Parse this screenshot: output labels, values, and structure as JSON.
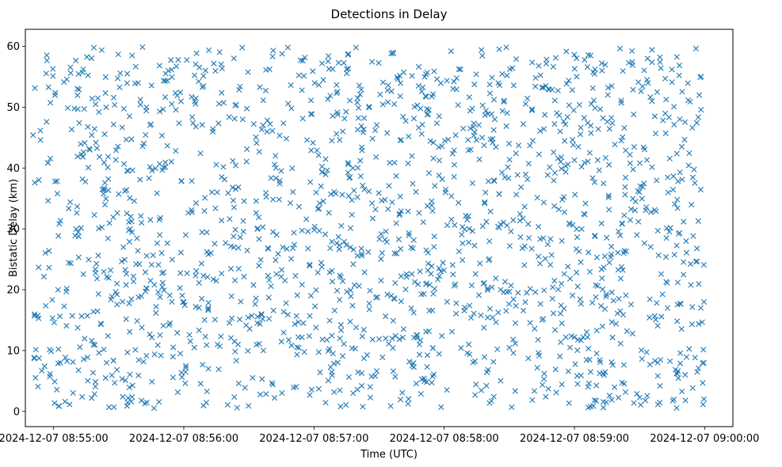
{
  "chart_data": {
    "type": "scatter",
    "title": "Detections in Delay",
    "xlabel": "Time (UTC)",
    "ylabel": "Bistatic Delay (km)",
    "marker": "x",
    "color": "#1f77b4",
    "grid": false,
    "legend": "none",
    "xlim": [
      "2024-12-07 08:54:47",
      "2024-12-07 09:00:13"
    ],
    "ylim": [
      -2.5,
      62.8
    ],
    "xticks": [
      "2024-12-07 08:55:00",
      "2024-12-07 08:56:00",
      "2024-12-07 08:57:00",
      "2024-12-07 08:58:00",
      "2024-12-07 08:59:00",
      "2024-12-07 09:00:00"
    ],
    "yticks": [
      0,
      10,
      20,
      30,
      40,
      50,
      60
    ],
    "x_range": [
      "2024-12-07 08:54:50",
      "2024-12-07 09:00:00"
    ],
    "y_range": [
      0.5,
      59.9
    ],
    "point_count": 1750,
    "tracks": [
      {
        "x": [
          "2024-12-07 08:58:18",
          "2024-12-07 08:58:22",
          "2024-12-07 08:58:26",
          "2024-12-07 08:58:30",
          "2024-12-07 08:58:34",
          "2024-12-07 08:58:38",
          "2024-12-07 08:58:42",
          "2024-12-07 08:58:46",
          "2024-12-07 08:58:50",
          "2024-12-07 08:58:54",
          "2024-12-07 08:58:58"
        ],
        "y": [
          21.0,
          20.4,
          20.0,
          19.7,
          19.5,
          19.5,
          19.6,
          19.9,
          20.4,
          21.0,
          21.8
        ]
      },
      {
        "x": [
          "2024-12-07 08:58:56",
          "2024-12-07 08:59:00",
          "2024-12-07 08:59:04",
          "2024-12-07 08:59:06"
        ],
        "y": [
          12.2,
          12.2,
          12.2,
          12.2
        ]
      },
      {
        "x": [
          "2024-12-07 08:57:27",
          "2024-12-07 08:57:30",
          "2024-12-07 08:57:33",
          "2024-12-07 08:57:36"
        ],
        "y": [
          11.8,
          11.9,
          12.0,
          12.0
        ]
      },
      {
        "x": [
          "2024-12-07 08:57:20",
          "2024-12-07 08:57:22",
          "2024-12-07 08:57:25"
        ],
        "y": [
          25.6,
          25.9,
          26.2
        ]
      },
      {
        "x": [
          "2024-12-07 08:57:18",
          "2024-12-07 08:57:20",
          "2024-12-07 08:57:22"
        ],
        "y": [
          3.0,
          3.6,
          4.2
        ]
      },
      {
        "x": [
          "2024-12-07 08:57:10",
          "2024-12-07 08:57:13",
          "2024-12-07 08:57:16",
          "2024-12-07 08:57:20"
        ],
        "y": [
          35.8,
          35.6,
          35.4,
          35.2
        ]
      },
      {
        "x": [
          "2024-12-07 08:58:42",
          "2024-12-07 08:58:45",
          "2024-12-07 08:58:48"
        ],
        "y": [
          53.4,
          53.2,
          53.0
        ]
      },
      {
        "x": [
          "2024-12-07 08:59:14",
          "2024-12-07 08:59:17",
          "2024-12-07 08:59:20",
          "2024-12-07 08:59:23"
        ],
        "y": [
          25.5,
          25.8,
          26.1,
          26.4
        ]
      },
      {
        "x": [
          "2024-12-07 08:58:51",
          "2024-12-07 08:58:54",
          "2024-12-07 08:58:57",
          "2024-12-07 08:59:00"
        ],
        "y": [
          39.2,
          39.9,
          40.6,
          41.3
        ]
      }
    ]
  }
}
